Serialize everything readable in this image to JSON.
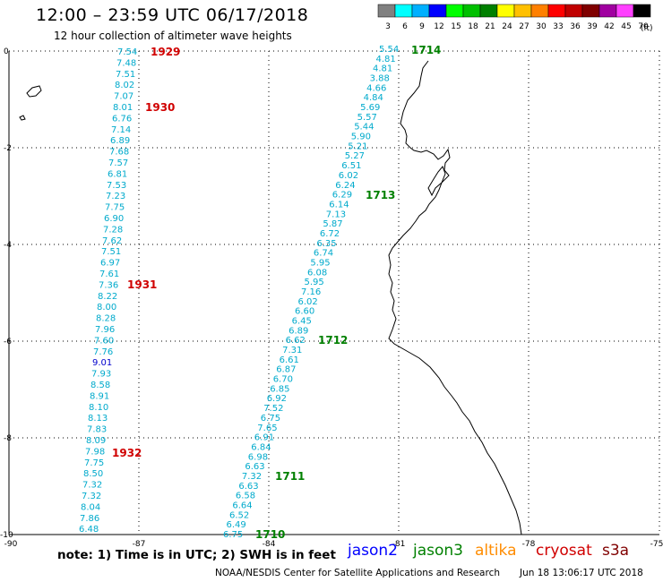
{
  "header": {
    "title": "12:00 – 23:59 UTC 06/17/2018",
    "subtitle": "12 hour collection of altimeter wave heights"
  },
  "legend": {
    "unit": "(ft)",
    "bins": [
      {
        "label": "3",
        "color": "#808080"
      },
      {
        "label": "6",
        "color": "#00ffff"
      },
      {
        "label": "9",
        "color": "#00b0ff"
      },
      {
        "label": "12",
        "color": "#0000ff"
      },
      {
        "label": "15",
        "color": "#00ff00"
      },
      {
        "label": "18",
        "color": "#00c000"
      },
      {
        "label": "21",
        "color": "#008000"
      },
      {
        "label": "24",
        "color": "#ffff00"
      },
      {
        "label": "27",
        "color": "#ffc000"
      },
      {
        "label": "30",
        "color": "#ff8000"
      },
      {
        "label": "33",
        "color": "#ff0000"
      },
      {
        "label": "36",
        "color": "#c00000"
      },
      {
        "label": "39",
        "color": "#800000"
      },
      {
        "label": "42",
        "color": "#a000a0"
      },
      {
        "label": "45",
        "color": "#ff40ff"
      },
      {
        "label": "70",
        "color": "#000000"
      }
    ]
  },
  "axes": {
    "lat_labels": [
      "0",
      "-2",
      "-4",
      "-6",
      "-8",
      "-10"
    ],
    "lon_labels": [
      "-90",
      "-87",
      "-84",
      "-81",
      "-78",
      "-75"
    ]
  },
  "tracks": [
    {
      "mission": "cryosat",
      "times": [
        "1929",
        "1930",
        "1931",
        "1932"
      ],
      "values": [
        "7.54",
        "7.48",
        "7.51",
        "8.02",
        "7.07",
        "8.01",
        "6.76",
        "7.14",
        "6.89",
        "7.68",
        "7.57",
        "6.81",
        "7.53",
        "7.23",
        "7.75",
        "6.90",
        "7.28",
        "7.62",
        "7.51",
        "6.97",
        "7.61",
        "7.36",
        "8.22",
        "8.00",
        "8.28",
        "7.96",
        "7.60",
        "7.76",
        "9.01",
        "7.93",
        "8.58",
        "8.91",
        "8.10",
        "8.13",
        "7.83",
        "8.09",
        "7.98",
        "7.75",
        "8.50",
        "7.32",
        "7.32",
        "8.04",
        "7.86",
        "6.48"
      ]
    },
    {
      "mission": "jason3",
      "times": [
        "1714",
        "1713",
        "1712",
        "1711",
        "1710"
      ],
      "values": [
        "5.54",
        "4.81",
        "4.81",
        "3.88",
        "4.66",
        "4.84",
        "5.69",
        "5.57",
        "5.44",
        "5.90",
        "5.21",
        "5.27",
        "6.51",
        "6.02",
        "6.24",
        "6.29",
        "6.14",
        "7.13",
        "5.87",
        "6.72",
        "6.35",
        "6.74",
        "5.95",
        "6.08",
        "5.95",
        "7.16",
        "6.02",
        "6.60",
        "6.45",
        "6.89",
        "6.62",
        "7.31",
        "6.61",
        "6.87",
        "6.70",
        "6.85",
        "6.92",
        "7.52",
        "6.75",
        "7.65",
        "6.91",
        "6.84",
        "6.98",
        "6.63",
        "7.32",
        "6.63",
        "6.58",
        "6.64",
        "6.52",
        "6.49",
        "6.75"
      ]
    }
  ],
  "note": "note: 1) Time is in UTC; 2) SWH is in feet",
  "missions": [
    {
      "label": "jason2",
      "color": "#0000ff"
    },
    {
      "label": "jason3",
      "color": "#008000"
    },
    {
      "label": "altika",
      "color": "#ff8c00"
    },
    {
      "label": "cryosat",
      "color": "#d00000"
    },
    {
      "label": "s3a",
      "color": "#800000"
    }
  ],
  "footer": {
    "credit": "NOAA/NESDIS Center for Satellite Applications and Research",
    "timestamp": "Jun 18 13:06:17 UTC 2018"
  },
  "colors": {
    "swh_text": "#00aacc",
    "swh_high": "#0000cc",
    "time_cryosat": "#d00000",
    "time_jason3": "#008000",
    "grid": "#000000"
  }
}
